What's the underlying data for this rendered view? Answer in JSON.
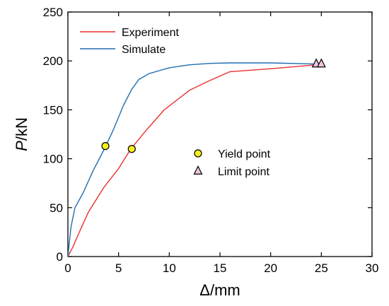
{
  "chart_data": {
    "type": "line",
    "title": "",
    "xlabel": "Δ/mm",
    "ylabel_italic": "P",
    "ylabel_unit": "/kN",
    "xlim": [
      0,
      30
    ],
    "ylim": [
      0,
      250
    ],
    "xticks": [
      0,
      5,
      10,
      15,
      20,
      25,
      30
    ],
    "yticks": [
      0,
      50,
      100,
      150,
      200,
      250
    ],
    "grid": false,
    "legend_position": "top-left",
    "series": [
      {
        "name": "Experiment",
        "color": "#e8312f",
        "points": [
          [
            0,
            0
          ],
          [
            0.5,
            10
          ],
          [
            1,
            22
          ],
          [
            2,
            45
          ],
          [
            3.5,
            70
          ],
          [
            5,
            90
          ],
          [
            6.2,
            110
          ],
          [
            7.8,
            130
          ],
          [
            9.5,
            150
          ],
          [
            12,
            170
          ],
          [
            14,
            180
          ],
          [
            16,
            189
          ],
          [
            20,
            192
          ],
          [
            24.5,
            196
          ],
          [
            25,
            197
          ]
        ]
      },
      {
        "name": "Simulate",
        "color": "#1f6fb2",
        "points": [
          [
            0,
            0
          ],
          [
            0.3,
            30
          ],
          [
            0.7,
            50
          ],
          [
            1.5,
            65
          ],
          [
            2.5,
            88
          ],
          [
            3.7,
            112
          ],
          [
            4.5,
            130
          ],
          [
            5.5,
            155
          ],
          [
            6.3,
            171
          ],
          [
            7,
            181
          ],
          [
            8,
            187
          ],
          [
            9,
            190
          ],
          [
            10,
            193
          ],
          [
            12,
            196
          ],
          [
            14,
            197.5
          ],
          [
            16,
            198
          ],
          [
            20,
            198
          ],
          [
            24,
            197
          ],
          [
            24.5,
            197
          ]
        ]
      }
    ],
    "markers": [
      {
        "name": "Yield point",
        "shape": "circle",
        "fill": "#f5ee1e",
        "points": [
          [
            3.7,
            113
          ],
          [
            6.3,
            110
          ]
        ]
      },
      {
        "name": "Limit point",
        "shape": "triangle",
        "fill": "#f2c4e2",
        "points": [
          [
            24.5,
            197
          ],
          [
            25,
            197
          ]
        ]
      }
    ]
  }
}
